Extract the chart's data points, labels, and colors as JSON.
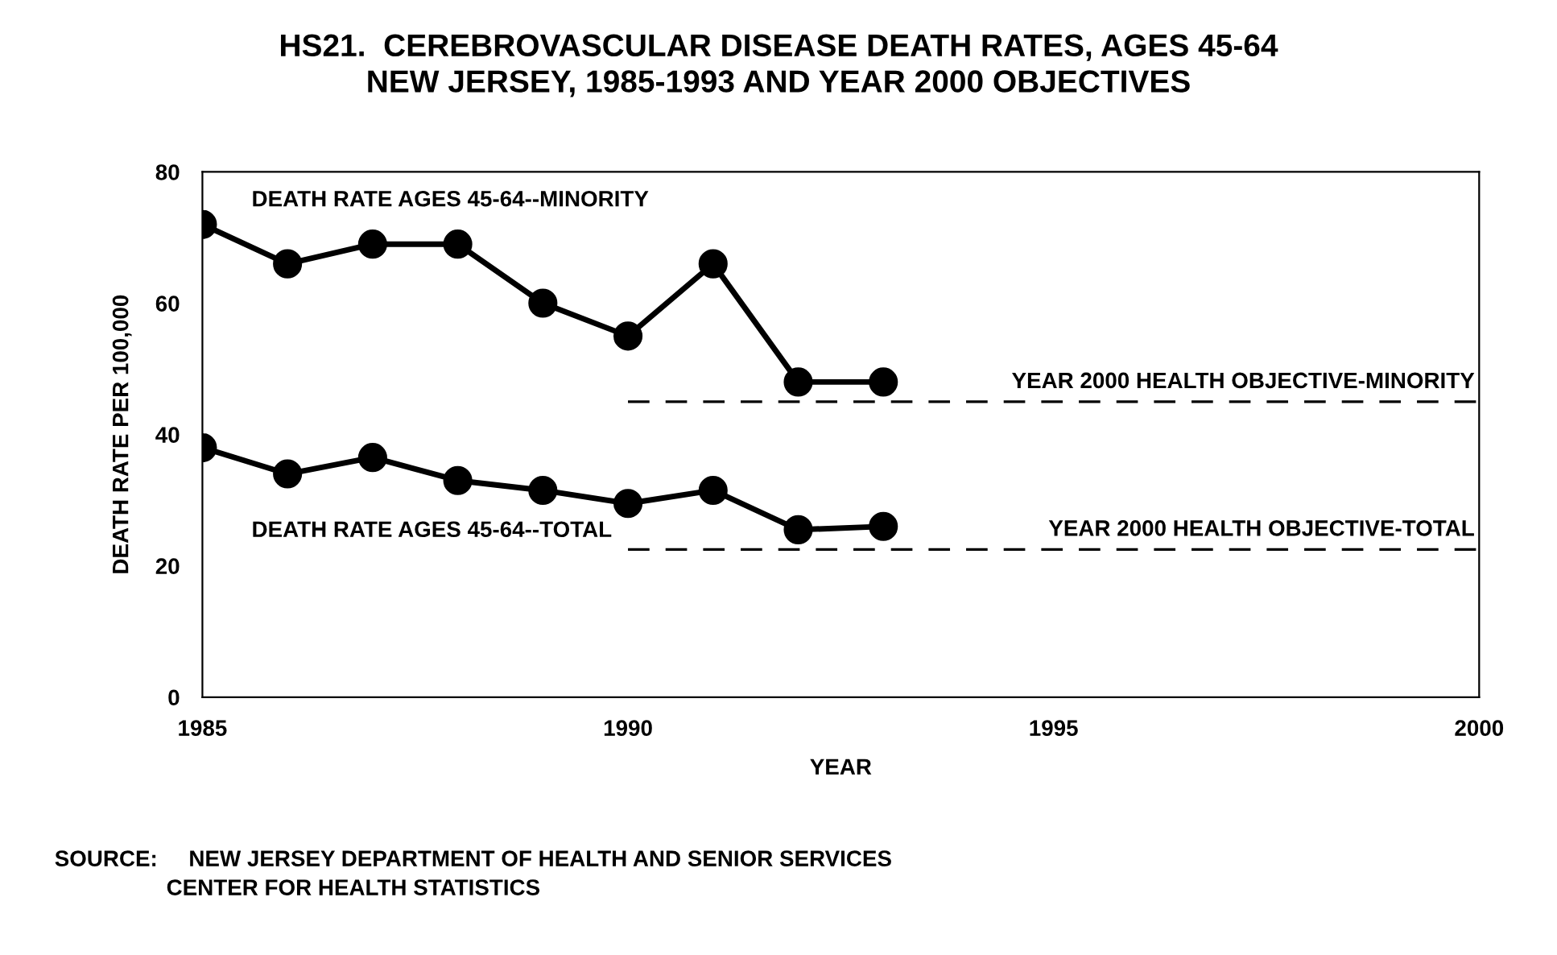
{
  "chart_data": {
    "type": "line",
    "title": "HS21.  CEREBROVASCULAR DISEASE DEATH RATES, AGES 45-64\nNEW JERSEY, 1985-1993 AND YEAR 2000 OBJECTIVES",
    "xlabel": "YEAR",
    "ylabel": "DEATH RATE PER 100,000",
    "series": [
      {
        "name": "DEATH RATE AGES 45-64--MINORITY",
        "color": "#000000",
        "x": [
          1985,
          1986,
          1987,
          1988,
          1989,
          1990,
          1991,
          1992,
          1993
        ],
        "values": [
          72,
          66,
          69,
          69,
          60,
          55,
          66,
          48,
          48
        ],
        "marker": "circle",
        "line_style": "solid"
      },
      {
        "name": "DEATH RATE AGES 45-64--TOTAL",
        "color": "#000000",
        "x": [
          1985,
          1986,
          1987,
          1988,
          1989,
          1990,
          1991,
          1992,
          1993
        ],
        "values": [
          38,
          34,
          36.5,
          33,
          31.5,
          29.5,
          31.5,
          25.5,
          26
        ],
        "marker": "circle",
        "line_style": "solid"
      },
      {
        "name": "YEAR 2000 HEALTH OBJECTIVE-MINORITY",
        "color": "#000000",
        "x": [
          1990,
          2000
        ],
        "values": [
          45,
          45
        ],
        "marker": "none",
        "line_style": "dashed"
      },
      {
        "name": "YEAR 2000 HEALTH OBJECTIVE-TOTAL",
        "color": "#000000",
        "x": [
          1990,
          2000
        ],
        "values": [
          22.5,
          22.5
        ],
        "marker": "none",
        "line_style": "dashed"
      }
    ],
    "xlim": [
      1985,
      2000
    ],
    "xticks": [
      1985,
      1990,
      1995,
      2000
    ],
    "ylim": [
      0,
      80
    ],
    "yticks": [
      0,
      20,
      40,
      60,
      80
    ],
    "grid": false,
    "legend": false,
    "annotations": [
      "SOURCE:     NEW JERSEY DEPARTMENT OF HEALTH AND SENIOR SERVICES\n                  CENTER FOR HEALTH STATISTICS"
    ]
  }
}
